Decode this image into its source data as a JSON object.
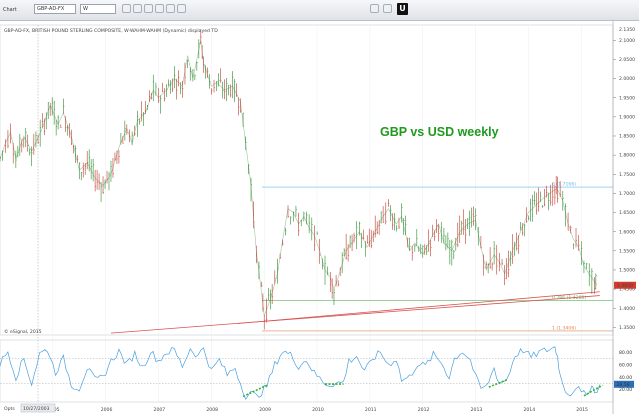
{
  "toolbar": {
    "tab_label": "Chart",
    "symbol": "GBP-AD-FX",
    "period": "W",
    "u_label": "U"
  },
  "chart_data": {
    "type": "line",
    "main_panel": {
      "info": "GBP-AD-FX, BRITISH POUND STERLING COMPOSITE, W-WAHM-WAHM (Dynamic) displayed TD",
      "title": "GBP vs USD weekly",
      "title_color": "#1f9a1f",
      "ylim": [
        1.33,
        2.14
      ],
      "yticks": [
        "2.1000",
        "2.0500",
        "2.0000",
        "1.9500",
        "1.9000",
        "1.8500",
        "1.8000",
        "1.7500",
        "1.7000",
        "1.6500",
        "1.6000",
        "1.5500",
        "1.5000",
        "1.4500",
        "1.4000",
        "1.3500"
      ],
      "top_label": "2.1350",
      "current_price": "1.4600",
      "x_years": [
        "2005",
        "2006",
        "2007",
        "2008",
        "2009",
        "2010",
        "2011",
        "2012",
        "2013",
        "2014",
        "2015"
      ],
      "price_path": [
        [
          2004.0,
          1.79
        ],
        [
          2004.1,
          1.83
        ],
        [
          2004.2,
          1.86
        ],
        [
          2004.3,
          1.79
        ],
        [
          2004.45,
          1.85
        ],
        [
          2004.6,
          1.81
        ],
        [
          2004.8,
          1.87
        ],
        [
          2004.95,
          1.93
        ],
        [
          2005.1,
          1.88
        ],
        [
          2005.2,
          1.91
        ],
        [
          2005.35,
          1.85
        ],
        [
          2005.5,
          1.76
        ],
        [
          2005.65,
          1.78
        ],
        [
          2005.8,
          1.74
        ],
        [
          2005.95,
          1.72
        ],
        [
          2006.1,
          1.75
        ],
        [
          2006.25,
          1.82
        ],
        [
          2006.4,
          1.87
        ],
        [
          2006.5,
          1.83
        ],
        [
          2006.6,
          1.89
        ],
        [
          2006.75,
          1.91
        ],
        [
          2006.9,
          1.97
        ],
        [
          2007.0,
          1.95
        ],
        [
          2007.15,
          1.97
        ],
        [
          2007.3,
          2.0
        ],
        [
          2007.45,
          1.98
        ],
        [
          2007.55,
          2.06
        ],
        [
          2007.65,
          2.0
        ],
        [
          2007.8,
          2.1
        ],
        [
          2007.85,
          2.04
        ],
        [
          2008.0,
          1.98
        ],
        [
          2008.1,
          1.99
        ],
        [
          2008.25,
          1.97
        ],
        [
          2008.4,
          1.98
        ],
        [
          2008.55,
          1.94
        ],
        [
          2008.65,
          1.83
        ],
        [
          2008.75,
          1.72
        ],
        [
          2008.85,
          1.55
        ],
        [
          2008.95,
          1.44
        ],
        [
          2009.0,
          1.38
        ],
        [
          2009.08,
          1.41
        ],
        [
          2009.15,
          1.44
        ],
        [
          2009.25,
          1.49
        ],
        [
          2009.35,
          1.58
        ],
        [
          2009.45,
          1.66
        ],
        [
          2009.55,
          1.65
        ],
        [
          2009.65,
          1.62
        ],
        [
          2009.75,
          1.64
        ],
        [
          2009.85,
          1.61
        ],
        [
          2009.95,
          1.59
        ],
        [
          2010.05,
          1.55
        ],
        [
          2010.15,
          1.5
        ],
        [
          2010.25,
          1.48
        ],
        [
          2010.32,
          1.45
        ],
        [
          2010.4,
          1.48
        ],
        [
          2010.55,
          1.55
        ],
        [
          2010.7,
          1.58
        ],
        [
          2010.8,
          1.6
        ],
        [
          2010.95,
          1.56
        ],
        [
          2011.1,
          1.6
        ],
        [
          2011.25,
          1.64
        ],
        [
          2011.35,
          1.66
        ],
        [
          2011.5,
          1.62
        ],
        [
          2011.6,
          1.64
        ],
        [
          2011.75,
          1.55
        ],
        [
          2011.85,
          1.57
        ],
        [
          2012.0,
          1.54
        ],
        [
          2012.15,
          1.58
        ],
        [
          2012.3,
          1.62
        ],
        [
          2012.4,
          1.57
        ],
        [
          2012.55,
          1.55
        ],
        [
          2012.7,
          1.6
        ],
        [
          2012.85,
          1.62
        ],
        [
          2013.0,
          1.63
        ],
        [
          2013.1,
          1.56
        ],
        [
          2013.2,
          1.5
        ],
        [
          2013.35,
          1.54
        ],
        [
          2013.45,
          1.52
        ],
        [
          2013.55,
          1.49
        ],
        [
          2013.7,
          1.55
        ],
        [
          2013.85,
          1.6
        ],
        [
          2014.0,
          1.65
        ],
        [
          2014.15,
          1.67
        ],
        [
          2014.3,
          1.69
        ],
        [
          2014.5,
          1.71
        ],
        [
          2014.55,
          1.71
        ],
        [
          2014.65,
          1.68
        ],
        [
          2014.75,
          1.62
        ],
        [
          2014.85,
          1.58
        ],
        [
          2014.95,
          1.56
        ],
        [
          2015.05,
          1.51
        ],
        [
          2015.15,
          1.49
        ],
        [
          2015.25,
          1.47
        ],
        [
          2015.3,
          1.46
        ]
      ],
      "fib_levels": [
        {
          "label": "0 (1.7166)",
          "value": 1.7166,
          "color": "#6ab9e8"
        },
        {
          "label": "0.786 (1.4200)",
          "value": 1.42,
          "color": "#5fb35f"
        },
        {
          "label": "1 (1.3406)",
          "value": 1.3406,
          "color": "#e0875a"
        }
      ],
      "trendlines": [
        {
          "from": [
            2006.1,
            1.335
          ],
          "to": [
            2015.35,
            1.433
          ],
          "color": "#d9534f"
        },
        {
          "from": [
            2008.5,
            1.36
          ],
          "to": [
            2015.35,
            1.443
          ],
          "color": "#d9534f"
        }
      ]
    },
    "indicator_panel": {
      "ylim": [
        0,
        100
      ],
      "yticks": [
        "80.00",
        "60.00",
        "40.00",
        "20.00"
      ],
      "value_label": "28.58",
      "series_color": "#4aa0e0",
      "reference_levels": [
        70,
        30
      ],
      "green_markers": [
        {
          "from": [
            2008.6,
            9
          ],
          "to": [
            2009.05,
            27
          ]
        },
        {
          "from": [
            2010.15,
            29
          ],
          "to": [
            2010.5,
            29
          ]
        },
        {
          "from": [
            2013.25,
            24
          ],
          "to": [
            2013.6,
            36
          ]
        },
        {
          "from": [
            2015.05,
            10
          ],
          "to": [
            2015.4,
            27
          ]
        }
      ],
      "series": [
        [
          2004.0,
          62
        ],
        [
          2004.15,
          82
        ],
        [
          2004.3,
          40
        ],
        [
          2004.45,
          70
        ],
        [
          2004.6,
          30
        ],
        [
          2004.75,
          78
        ],
        [
          2004.9,
          85
        ],
        [
          2005.05,
          48
        ],
        [
          2005.2,
          70
        ],
        [
          2005.35,
          28
        ],
        [
          2005.5,
          22
        ],
        [
          2005.65,
          55
        ],
        [
          2005.8,
          35
        ],
        [
          2005.95,
          40
        ],
        [
          2006.1,
          66
        ],
        [
          2006.25,
          82
        ],
        [
          2006.4,
          60
        ],
        [
          2006.55,
          78
        ],
        [
          2006.7,
          55
        ],
        [
          2006.85,
          82
        ],
        [
          2007.0,
          66
        ],
        [
          2007.15,
          80
        ],
        [
          2007.3,
          84
        ],
        [
          2007.45,
          58
        ],
        [
          2007.6,
          86
        ],
        [
          2007.75,
          74
        ],
        [
          2007.85,
          88
        ],
        [
          2008.0,
          50
        ],
        [
          2008.15,
          68
        ],
        [
          2008.3,
          44
        ],
        [
          2008.45,
          56
        ],
        [
          2008.55,
          30
        ],
        [
          2008.65,
          10
        ],
        [
          2008.75,
          14
        ],
        [
          2008.85,
          9
        ],
        [
          2008.95,
          16
        ],
        [
          2009.05,
          26
        ],
        [
          2009.2,
          60
        ],
        [
          2009.35,
          82
        ],
        [
          2009.5,
          76
        ],
        [
          2009.65,
          58
        ],
        [
          2009.8,
          68
        ],
        [
          2009.95,
          46
        ],
        [
          2010.1,
          34
        ],
        [
          2010.2,
          28
        ],
        [
          2010.35,
          30
        ],
        [
          2010.5,
          32
        ],
        [
          2010.6,
          66
        ],
        [
          2010.75,
          74
        ],
        [
          2010.9,
          48
        ],
        [
          2011.05,
          70
        ],
        [
          2011.2,
          80
        ],
        [
          2011.35,
          60
        ],
        [
          2011.5,
          70
        ],
        [
          2011.6,
          35
        ],
        [
          2011.75,
          40
        ],
        [
          2011.9,
          62
        ],
        [
          2012.05,
          58
        ],
        [
          2012.2,
          76
        ],
        [
          2012.35,
          64
        ],
        [
          2012.5,
          40
        ],
        [
          2012.6,
          70
        ],
        [
          2012.75,
          82
        ],
        [
          2012.9,
          68
        ],
        [
          2013.0,
          40
        ],
        [
          2013.1,
          22
        ],
        [
          2013.2,
          24
        ],
        [
          2013.35,
          55
        ],
        [
          2013.45,
          30
        ],
        [
          2013.6,
          38
        ],
        [
          2013.75,
          76
        ],
        [
          2013.9,
          84
        ],
        [
          2014.05,
          72
        ],
        [
          2014.2,
          80
        ],
        [
          2014.35,
          84
        ],
        [
          2014.5,
          88
        ],
        [
          2014.55,
          74
        ],
        [
          2014.6,
          42
        ],
        [
          2014.7,
          20
        ],
        [
          2014.8,
          12
        ],
        [
          2014.9,
          26
        ],
        [
          2015.0,
          14
        ],
        [
          2015.1,
          11
        ],
        [
          2015.2,
          30
        ],
        [
          2015.25,
          14
        ],
        [
          2015.35,
          28
        ]
      ]
    },
    "footer": {
      "watermark": "© eSignal, 2015",
      "date_label": "10/27/2003",
      "corner_label": "Opts"
    }
  }
}
